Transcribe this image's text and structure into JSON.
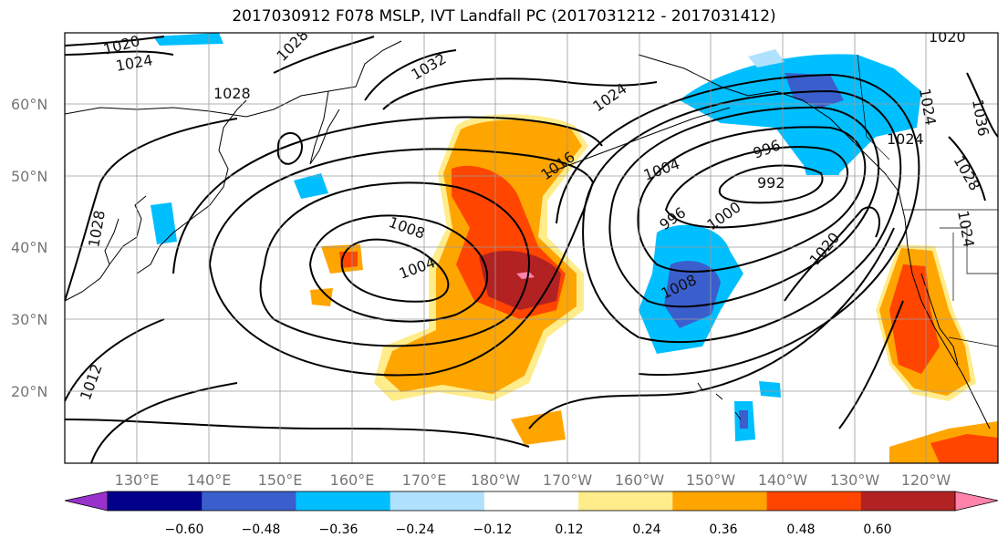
{
  "title": "2017030912 F078 MSLP, IVT Landfall PC (2017031212 - 2017031412)",
  "map": {
    "lon_labels": [
      "130°E",
      "140°E",
      "150°E",
      "160°E",
      "170°E",
      "180°W",
      "170°W",
      "160°W",
      "150°W",
      "140°W",
      "130°W",
      "120°W"
    ],
    "lat_labels": [
      "60°N",
      "50°N",
      "40°N",
      "30°N",
      "20°N"
    ],
    "contour_labels": [
      "1020",
      "1024",
      "1028",
      "1028",
      "1032",
      "1024",
      "1016",
      "1008",
      "1004",
      "1004",
      "996",
      "992",
      "996",
      "1000",
      "1008",
      "1020",
      "1028",
      "1012",
      "1024",
      "1036",
      "1020",
      "1024",
      "1028",
      "1024"
    ]
  },
  "colorbar": {
    "ticks": [
      "−0.60",
      "−0.48",
      "−0.36",
      "−0.24",
      "−0.12",
      "0.12",
      "0.24",
      "0.36",
      "0.48",
      "0.60"
    ],
    "colors": [
      "#9932cc",
      "#00008b",
      "#3a5fcd",
      "#00bfff",
      "#b0e2ff",
      "#ffffff",
      "#ffec8b",
      "#ffa500",
      "#ff4500",
      "#b22222",
      "#ff82ab"
    ]
  }
}
